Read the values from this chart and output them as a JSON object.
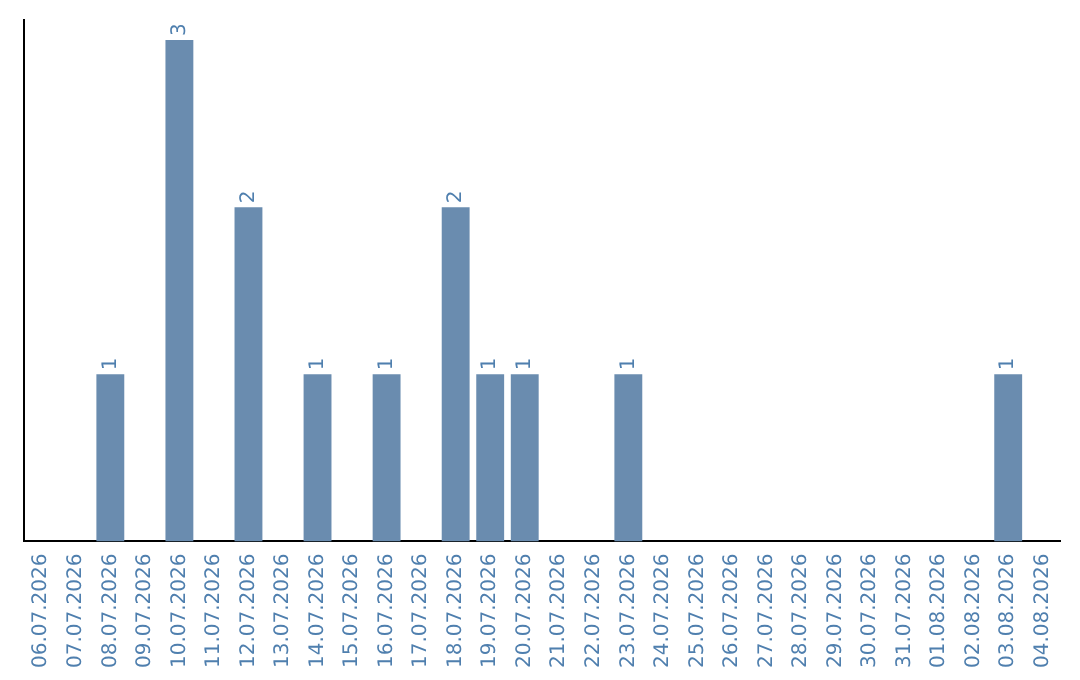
{
  "chart_data": {
    "type": "bar",
    "categories": [
      "06.07.2026",
      "07.07.2026",
      "08.07.2026",
      "09.07.2026",
      "10.07.2026",
      "11.07.2026",
      "12.07.2026",
      "13.07.2026",
      "14.07.2026",
      "15.07.2026",
      "16.07.2026",
      "17.07.2026",
      "18.07.2026",
      "19.07.2026",
      "20.07.2026",
      "21.07.2026",
      "22.07.2026",
      "23.07.2026",
      "24.07.2026",
      "25.07.2026",
      "26.07.2026",
      "27.07.2026",
      "28.07.2026",
      "29.07.2026",
      "30.07.2026",
      "31.07.2026",
      "01.08.2026",
      "02.08.2026",
      "03.08.2026",
      "04.08.2026"
    ],
    "values": [
      0,
      0,
      1,
      0,
      3,
      0,
      2,
      0,
      1,
      0,
      1,
      0,
      2,
      1,
      1,
      0,
      0,
      1,
      0,
      0,
      0,
      0,
      0,
      0,
      0,
      0,
      0,
      0,
      1,
      0
    ],
    "value_labels": [
      null,
      null,
      "1",
      null,
      "3",
      null,
      "2",
      null,
      "1",
      null,
      "1",
      null,
      "2",
      "1",
      "1",
      null,
      null,
      "1",
      null,
      null,
      null,
      null,
      null,
      null,
      null,
      null,
      null,
      null,
      "1",
      null
    ],
    "color": "#6a8caf",
    "grid": false,
    "legend": false,
    "tick_labels": "x"
  }
}
